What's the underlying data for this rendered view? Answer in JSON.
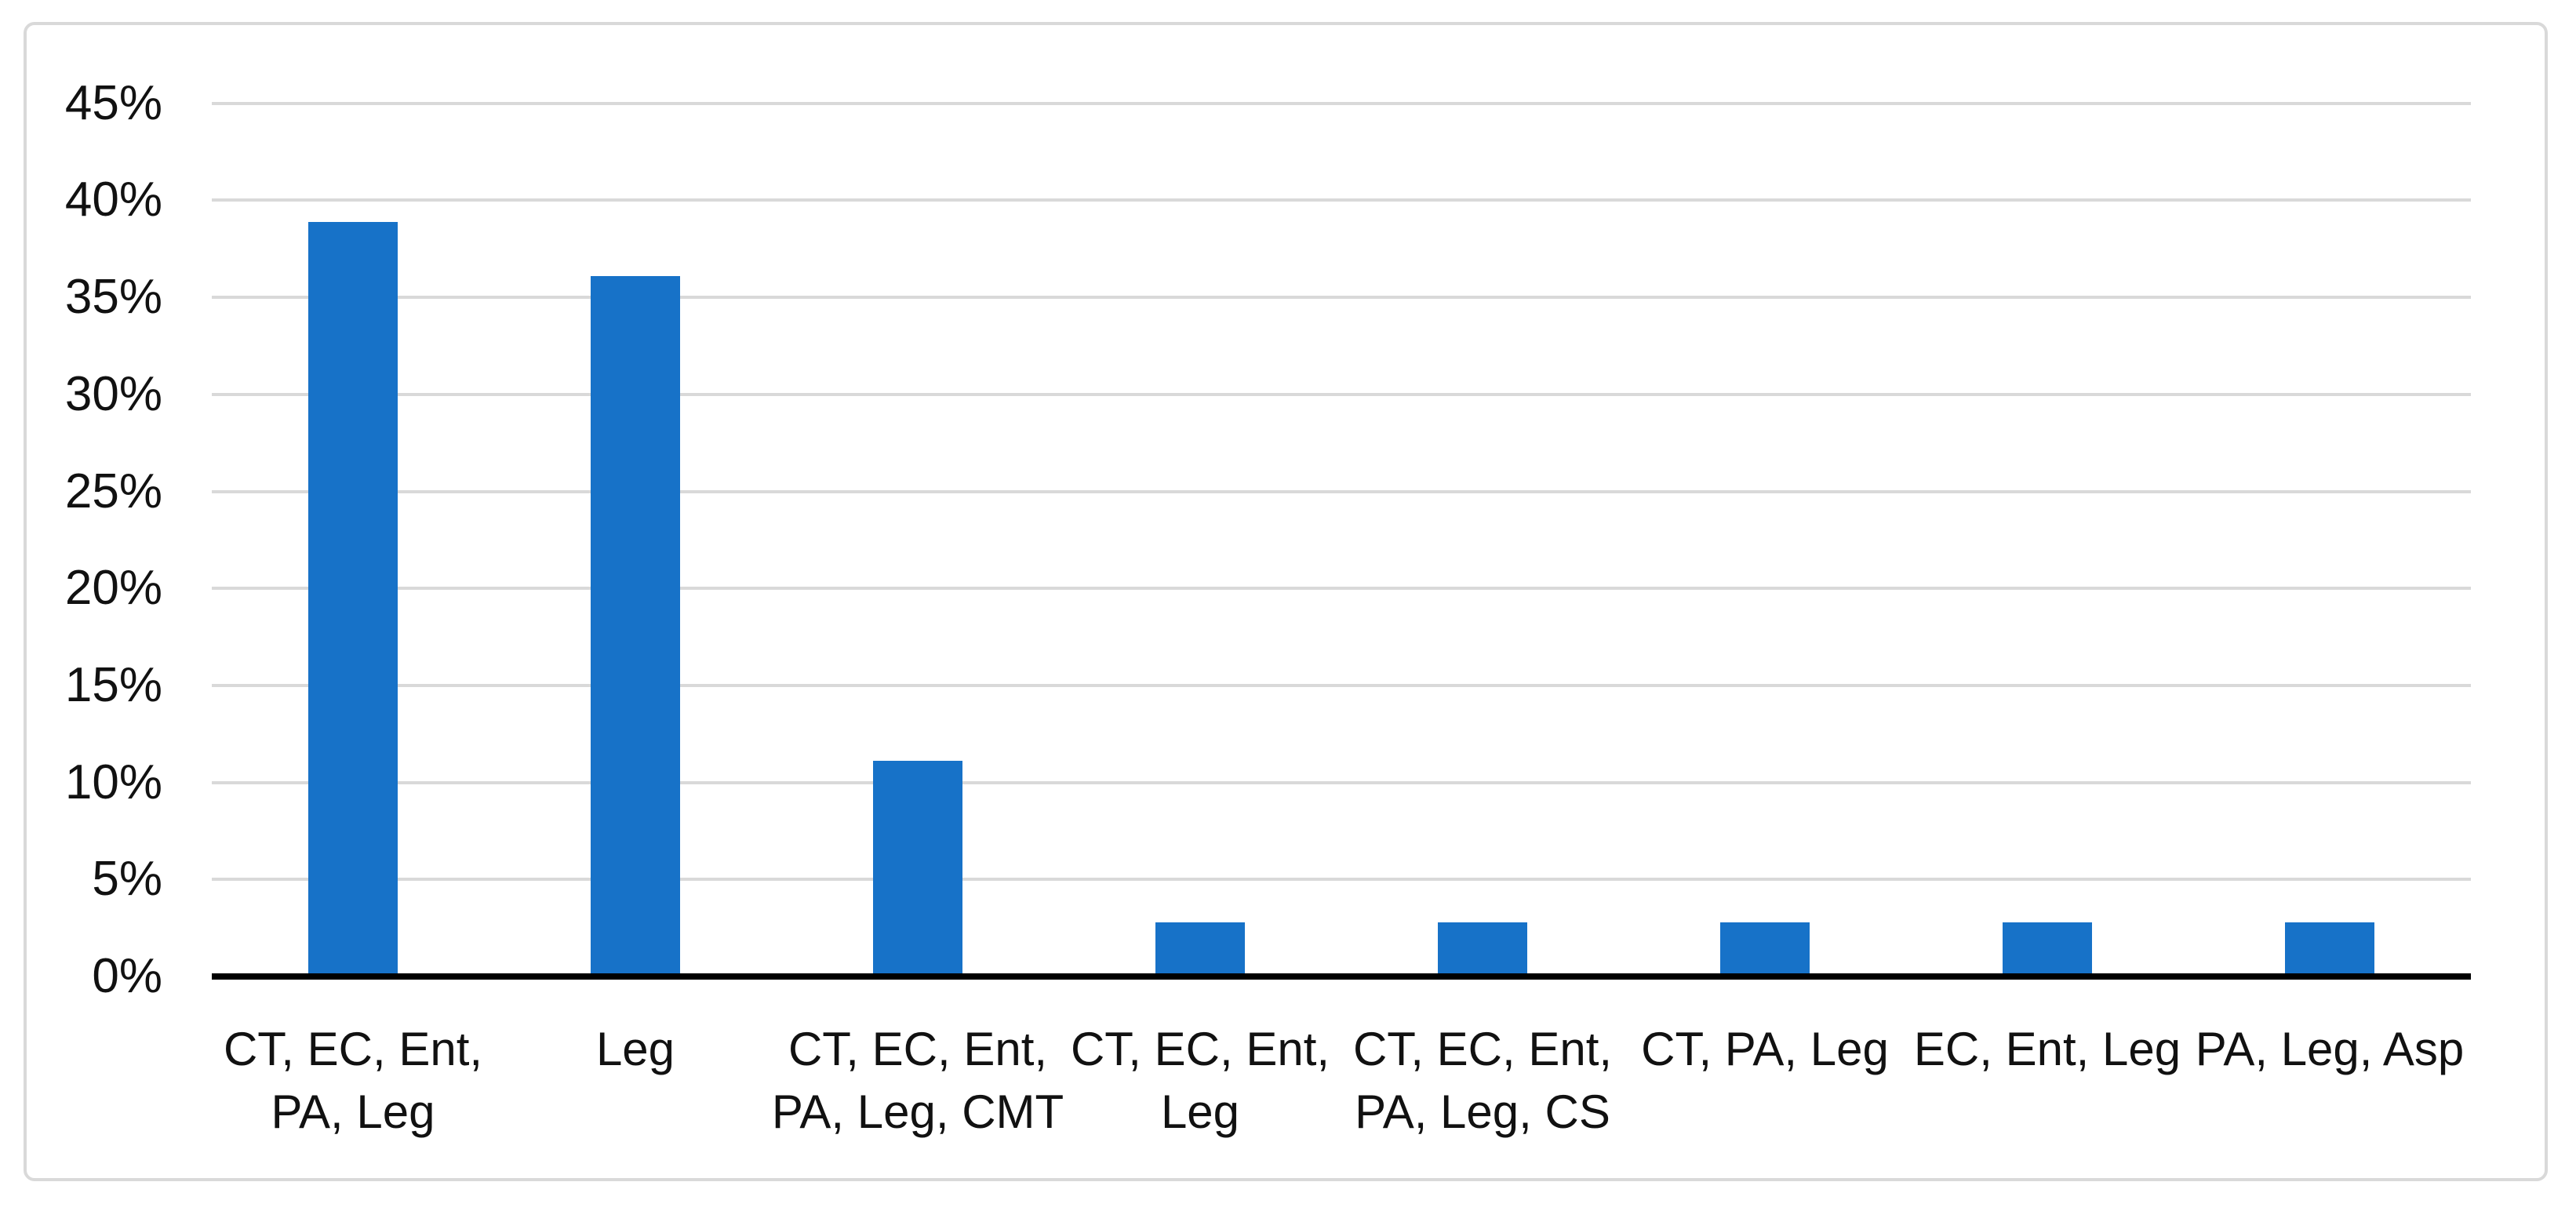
{
  "chart_data": {
    "type": "bar",
    "title": "",
    "xlabel": "",
    "ylabel": "",
    "unit": "%",
    "categories": [
      "CT, EC, Ent, PA, Leg",
      "Leg",
      "CT, EC, Ent, PA, Leg, CMT",
      "CT, EC, Ent, Leg",
      "CT, EC, Ent, PA, Leg, CS",
      "CT, PA, Leg",
      "EC, Ent, Leg",
      "PA, Leg, Asp"
    ],
    "category_lines": [
      [
        "CT, EC, Ent,",
        "PA, Leg"
      ],
      [
        "Leg"
      ],
      [
        "CT, EC, Ent,",
        "PA, Leg, CMT"
      ],
      [
        "CT, EC, Ent,",
        "Leg"
      ],
      [
        "CT, EC, Ent,",
        "PA, Leg, CS"
      ],
      [
        "CT, PA, Leg"
      ],
      [
        "EC, Ent, Leg"
      ],
      [
        "PA, Leg, Asp"
      ]
    ],
    "values": [
      38.9,
      36.1,
      11.1,
      2.8,
      2.8,
      2.8,
      2.8,
      2.8
    ],
    "ylim": [
      0,
      45
    ],
    "ytick_step": 5,
    "ytick_labels": [
      "0%",
      "5%",
      "10%",
      "15%",
      "20%",
      "25%",
      "30%",
      "35%",
      "40%",
      "45%"
    ],
    "grid": true,
    "legend": "none",
    "bar_color": "#1772C8",
    "gridline_color": "#D9D9D9",
    "axis_color": "#000000",
    "text_color": "#111111",
    "frame_color": "#D9D9D9"
  }
}
